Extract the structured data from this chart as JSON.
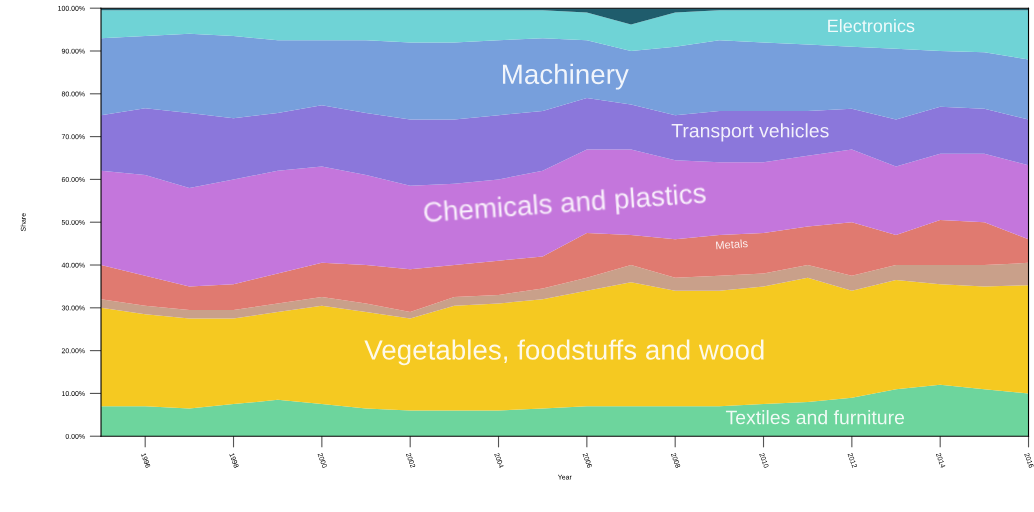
{
  "chart_data": {
    "type": "area",
    "stacked": true,
    "xlabel": "Year",
    "ylabel": "Share",
    "x": [
      1995,
      1996,
      1997,
      1998,
      1999,
      2000,
      2001,
      2002,
      2003,
      2004,
      2005,
      2006,
      2007,
      2008,
      2009,
      2010,
      2011,
      2012,
      2013,
      2014,
      2015,
      2016
    ],
    "series": [
      {
        "name": "Textiles and furniture",
        "color": "#6dd59d",
        "values": [
          7,
          7,
          6.5,
          7.5,
          8.5,
          7.5,
          6.5,
          6,
          6,
          6,
          6.5,
          7,
          7,
          7,
          7,
          7.5,
          8,
          9,
          11,
          12,
          11,
          10
        ]
      },
      {
        "name": "Vegetables, foodstuffs and wood",
        "color": "#f5c921",
        "values": [
          23,
          21.5,
          21,
          20,
          20.5,
          23,
          22.5,
          21.5,
          24.5,
          25,
          25.5,
          27,
          29,
          27,
          27,
          27.5,
          29,
          25,
          25.5,
          23.5,
          24,
          25.3
        ]
      },
      {
        "color": "#c9a08a",
        "values": [
          2,
          2,
          2,
          2,
          2,
          2,
          2,
          1.5,
          2,
          2,
          2.5,
          3,
          4,
          3,
          3.5,
          3,
          3,
          3.5,
          3.5,
          4.5,
          5,
          5.2
        ]
      },
      {
        "name": "Metals",
        "color": "#e07a70",
        "values": [
          8,
          7,
          5.5,
          6,
          7,
          8,
          9,
          10,
          7.5,
          8,
          7.5,
          10.5,
          7,
          9,
          9.5,
          9.5,
          9,
          12.5,
          7,
          10.5,
          10,
          5.5
        ]
      },
      {
        "name": "Chemicals and plastics",
        "color": "#c476dc",
        "values": [
          22,
          23.5,
          23,
          24.5,
          24,
          22.5,
          21,
          19.5,
          19,
          19,
          20,
          19.5,
          20,
          18.5,
          17,
          16.5,
          16.5,
          17,
          16,
          15.5,
          16,
          17.3
        ]
      },
      {
        "name": "Transport vehicles",
        "color": "#8b77db",
        "values": [
          13,
          15.6,
          17.5,
          14.3,
          13.5,
          14.3,
          14.5,
          15.5,
          15,
          15,
          14,
          12,
          10.5,
          10.5,
          12,
          12,
          10.5,
          9.5,
          11,
          11,
          10.5,
          10.7
        ]
      },
      {
        "name": "Machinery",
        "color": "#779fdc",
        "values": [
          18,
          16.9,
          18.5,
          19.2,
          17,
          15.2,
          17,
          18,
          18,
          17.5,
          17,
          13.5,
          12.5,
          16,
          16.5,
          16,
          15.5,
          14.5,
          16.5,
          13,
          13.2,
          14
        ]
      },
      {
        "name": "Electronics",
        "color": "#6fd3d6",
        "values": [
          6.5,
          6,
          5.5,
          6,
          7,
          7,
          7,
          7.5,
          7.5,
          7,
          6.5,
          6.5,
          6.2,
          8,
          7,
          7.5,
          8,
          8.5,
          9,
          9.5,
          9.8,
          11.5
        ]
      },
      {
        "color": "#1f5c6c",
        "values": [
          0.5,
          0.5,
          0.5,
          0.5,
          0.5,
          0.5,
          0.5,
          0.5,
          0.5,
          0.5,
          0.5,
          1,
          3.8,
          1,
          0.5,
          0.5,
          0.5,
          0.5,
          0.5,
          0.5,
          0.5,
          0.5
        ]
      }
    ],
    "xlim": [
      1995,
      2016
    ],
    "xticks": [
      1996,
      1998,
      2000,
      2002,
      2004,
      2006,
      2008,
      2010,
      2012,
      2014,
      2016
    ],
    "ylim": [
      0,
      100
    ],
    "yticks": [
      {
        "value": 0,
        "label": "0.00%"
      },
      {
        "value": 10,
        "label": "10.00%"
      },
      {
        "value": 20,
        "label": "20.00%"
      },
      {
        "value": 30,
        "label": "30.00%"
      },
      {
        "value": 40,
        "label": "40.00%"
      },
      {
        "value": 50,
        "label": "50.00%"
      },
      {
        "value": 60,
        "label": "60.00%"
      },
      {
        "value": 70,
        "label": "70.00%"
      },
      {
        "value": 80,
        "label": "80.00%"
      },
      {
        "value": 90,
        "label": "90.00%"
      },
      {
        "value": 100,
        "label": "100.00%"
      }
    ],
    "grid": false
  }
}
